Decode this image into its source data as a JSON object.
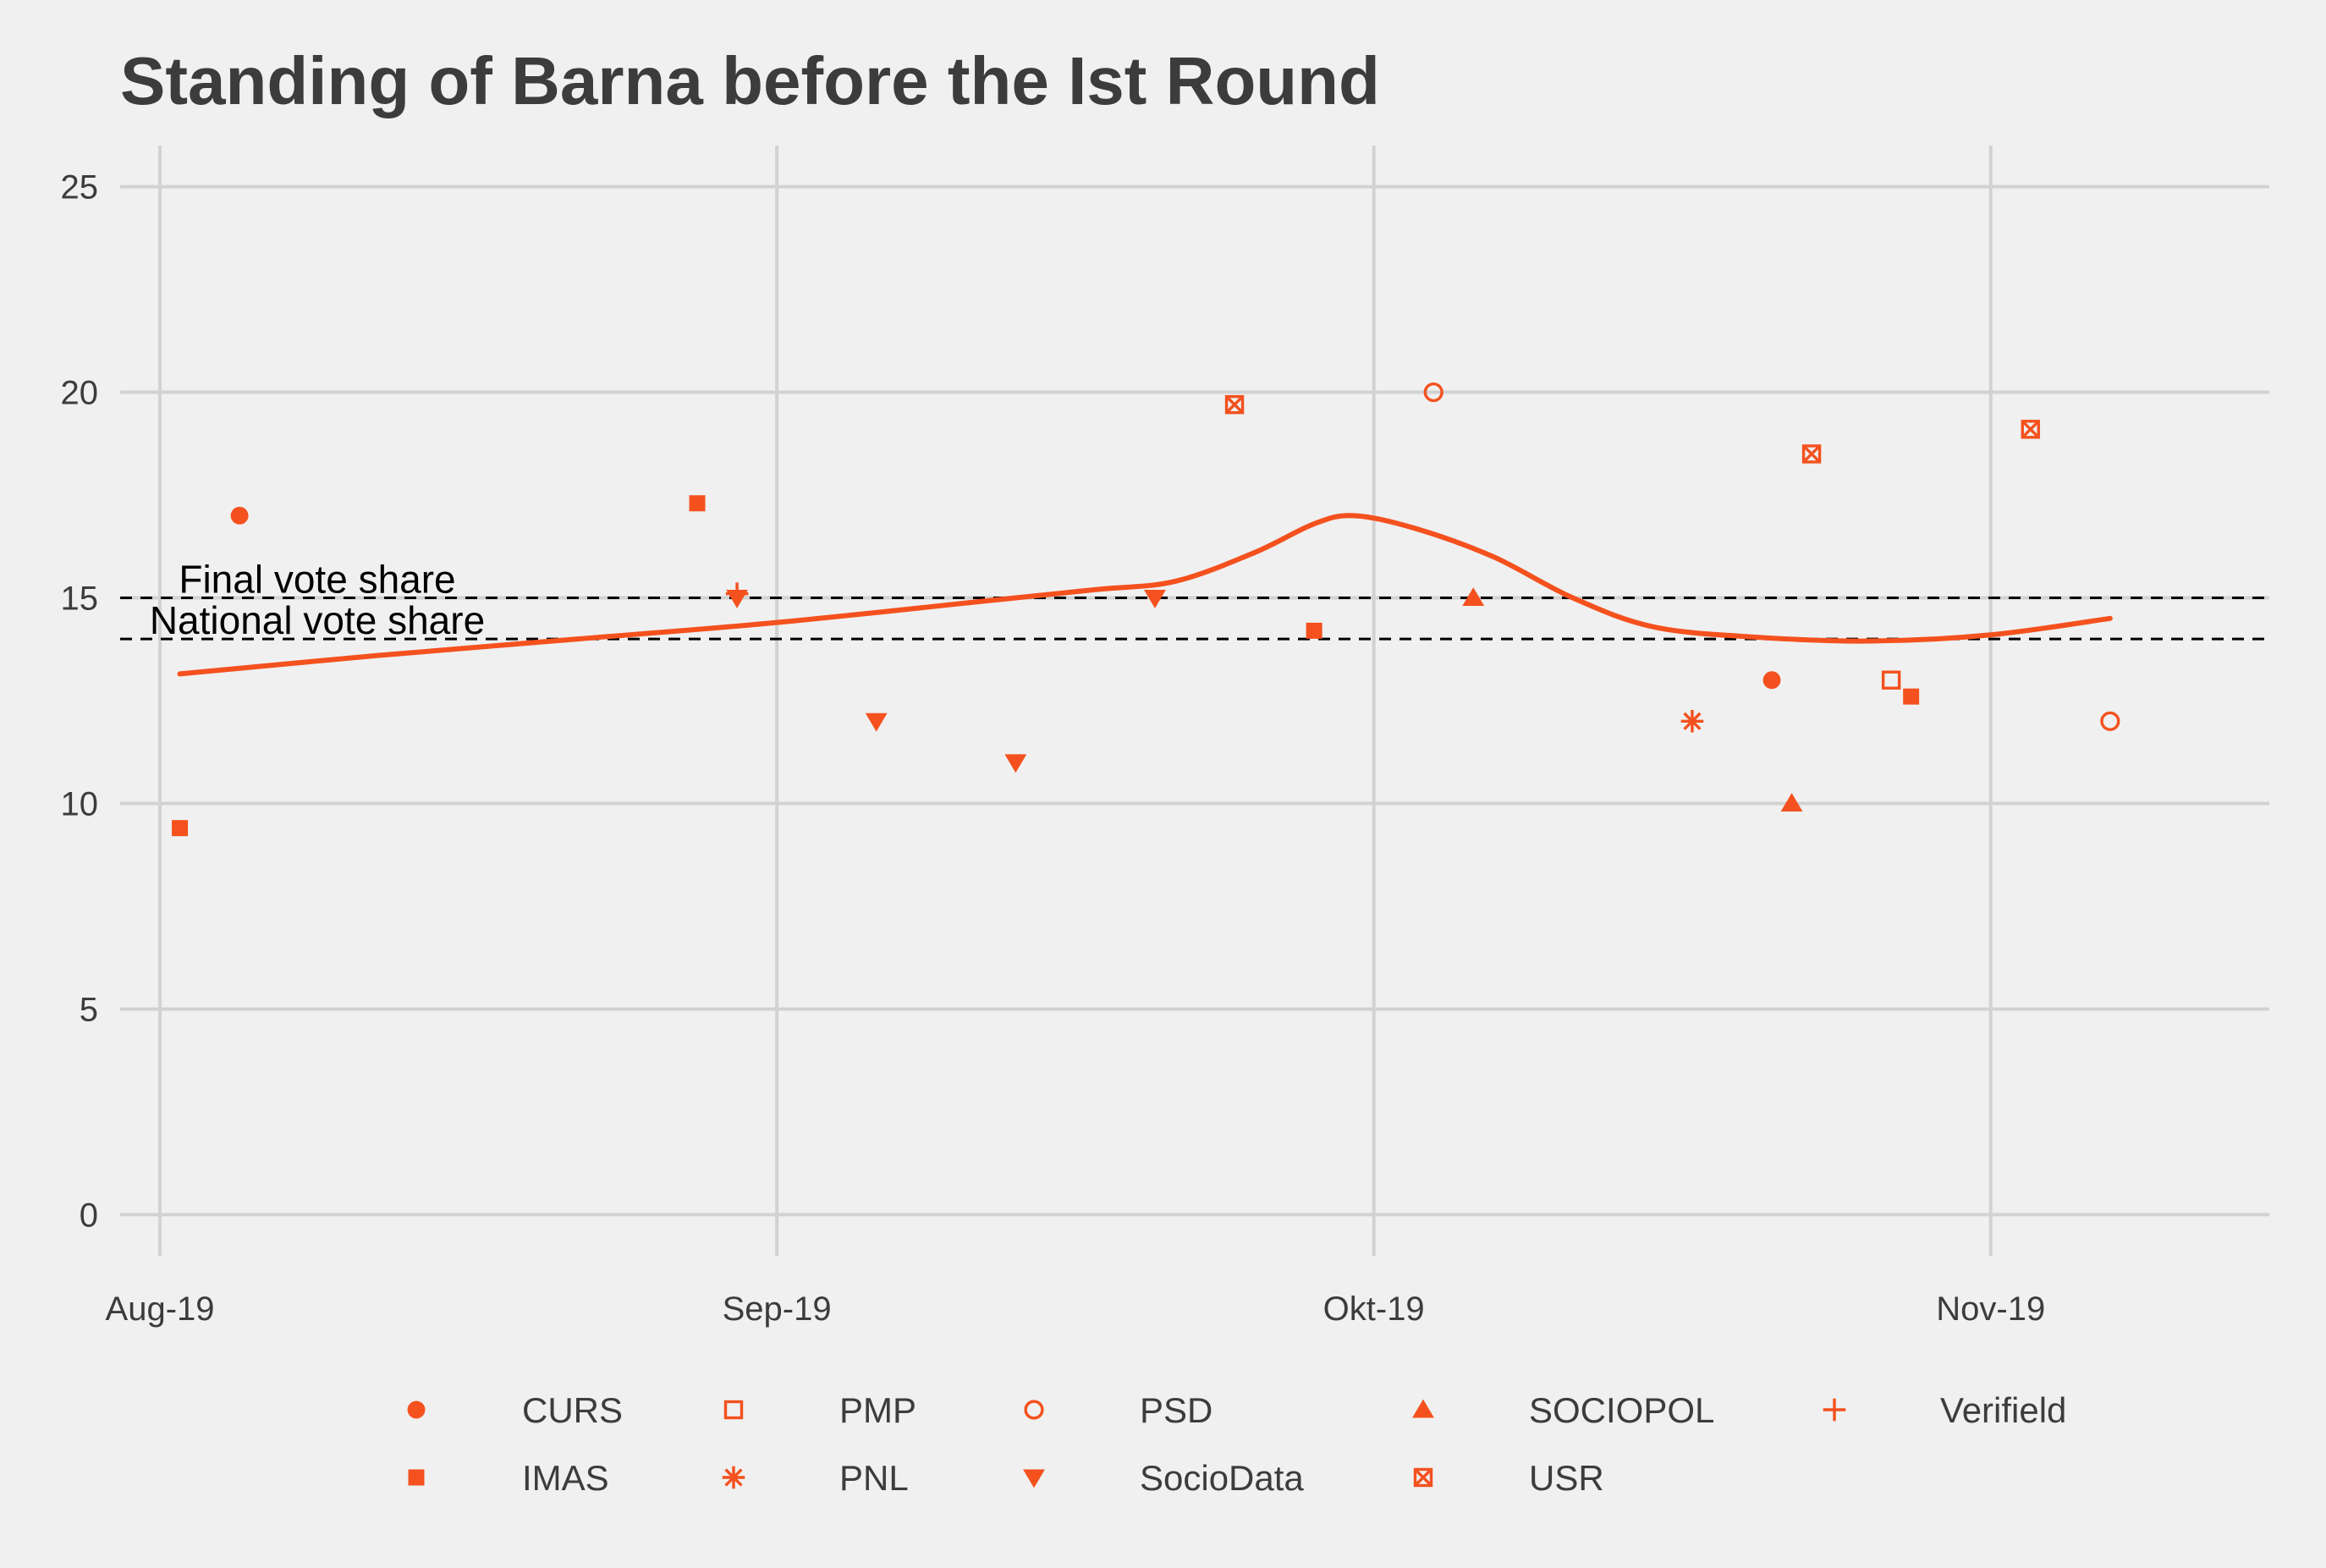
{
  "chart_data": {
    "type": "scatter",
    "title": "Standing of Barna before the Ist Round",
    "xlabel": "",
    "ylabel": "",
    "x_axis": {
      "type": "date",
      "range": [
        "2019-07-30",
        "2019-11-15"
      ],
      "ticks": [
        {
          "date": "2019-08-01",
          "label": "Aug-19"
        },
        {
          "date": "2019-09-01",
          "label": "Sep-19"
        },
        {
          "date": "2019-10-01",
          "label": "Okt-19"
        },
        {
          "date": "2019-11-01",
          "label": "Nov-19"
        }
      ]
    },
    "y_axis": {
      "range": [
        -1,
        26
      ],
      "ticks": [
        0,
        5,
        10,
        15,
        20,
        25
      ]
    },
    "grid": true,
    "color": "#f4511e",
    "reference_lines": [
      {
        "label": "Final vote share",
        "y": 15.0
      },
      {
        "label": "National vote share",
        "y": 14.0
      }
    ],
    "series": [
      {
        "name": "CURS",
        "shape": "circle-filled",
        "points": [
          {
            "x": "2019-08-05",
            "y": 17.0
          },
          {
            "x": "2019-10-21",
            "y": 13.0
          }
        ]
      },
      {
        "name": "IMAS",
        "shape": "square-filled",
        "points": [
          {
            "x": "2019-08-02",
            "y": 9.4
          },
          {
            "x": "2019-08-28",
            "y": 17.3
          },
          {
            "x": "2019-09-28",
            "y": 14.2
          },
          {
            "x": "2019-10-28",
            "y": 12.6
          }
        ]
      },
      {
        "name": "PMP",
        "shape": "square-open",
        "points": [
          {
            "x": "2019-10-27",
            "y": 13.0
          }
        ]
      },
      {
        "name": "PNL",
        "shape": "asterisk",
        "points": [
          {
            "x": "2019-10-17",
            "y": 12.0
          }
        ]
      },
      {
        "name": "PSD",
        "shape": "circle-open",
        "points": [
          {
            "x": "2019-10-04",
            "y": 20.0
          },
          {
            "x": "2019-11-07",
            "y": 12.0
          }
        ]
      },
      {
        "name": "SocioData",
        "shape": "triangle-down-filled",
        "points": [
          {
            "x": "2019-08-30",
            "y": 15.0
          },
          {
            "x": "2019-09-06",
            "y": 12.0
          },
          {
            "x": "2019-09-13",
            "y": 11.0
          },
          {
            "x": "2019-09-20",
            "y": 15.0
          }
        ]
      },
      {
        "name": "SOCIOPOL",
        "shape": "triangle-up-filled",
        "points": [
          {
            "x": "2019-10-06",
            "y": 15.0
          },
          {
            "x": "2019-10-22",
            "y": 10.0
          }
        ]
      },
      {
        "name": "USR",
        "shape": "square-cross",
        "points": [
          {
            "x": "2019-09-24",
            "y": 19.7
          },
          {
            "x": "2019-10-23",
            "y": 18.5
          },
          {
            "x": "2019-11-03",
            "y": 19.1
          }
        ]
      },
      {
        "name": "Verifield",
        "shape": "plus",
        "points": [
          {
            "x": "2019-08-30",
            "y": 15.1
          }
        ]
      }
    ],
    "trend": {
      "type": "smooth",
      "points": [
        {
          "x": "2019-08-02",
          "y": 13.15
        },
        {
          "x": "2019-08-12",
          "y": 13.6
        },
        {
          "x": "2019-08-22",
          "y": 14.0
        },
        {
          "x": "2019-09-01",
          "y": 14.4
        },
        {
          "x": "2019-09-11",
          "y": 14.9
        },
        {
          "x": "2019-09-17",
          "y": 15.2
        },
        {
          "x": "2019-09-21",
          "y": 15.4
        },
        {
          "x": "2019-09-25",
          "y": 16.1
        },
        {
          "x": "2019-09-28",
          "y": 16.8
        },
        {
          "x": "2019-09-30",
          "y": 17.0
        },
        {
          "x": "2019-10-03",
          "y": 16.7
        },
        {
          "x": "2019-10-07",
          "y": 16.0
        },
        {
          "x": "2019-10-11",
          "y": 15.0
        },
        {
          "x": "2019-10-15",
          "y": 14.3
        },
        {
          "x": "2019-10-20",
          "y": 14.05
        },
        {
          "x": "2019-10-26",
          "y": 13.95
        },
        {
          "x": "2019-11-01",
          "y": 14.1
        },
        {
          "x": "2019-11-07",
          "y": 14.5
        }
      ]
    },
    "legend": {
      "position": "bottom",
      "rows": [
        [
          "CURS",
          "PMP",
          "PSD",
          "SOCIOPOL",
          "Verifield"
        ],
        [
          "IMAS",
          "PNL",
          "SocioData",
          "USR"
        ]
      ]
    }
  }
}
